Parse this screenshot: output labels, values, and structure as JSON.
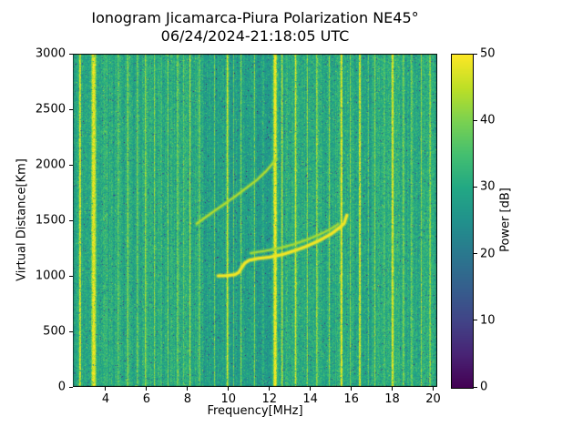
{
  "figure": {
    "title_line1": "Ionogram Jicamarca-Piura Polarization NE45°",
    "title_line2": "06/24/2024-21:18:05 UTC",
    "xlabel": "Frequency[MHz]",
    "ylabel": "Virtual Distance[Km]",
    "colorbar_label": "Power [dB]"
  },
  "chart_data": {
    "type": "heatmap",
    "title": "Ionogram Jicamarca-Piura Polarization NE45°",
    "subtitle": "06/24/2024-21:18:05 UTC",
    "xlabel": "Frequency[MHz]",
    "ylabel": "Virtual Distance[Km]",
    "x_range": [
      2.4,
      20.2
    ],
    "y_range": [
      0,
      3000
    ],
    "x_ticks": [
      4,
      6,
      8,
      10,
      12,
      14,
      16,
      18,
      20
    ],
    "y_ticks": [
      0,
      500,
      1000,
      1500,
      2000,
      2500,
      3000
    ],
    "grid": false,
    "legend": "none",
    "colorbar": {
      "label": "Power [dB]",
      "min": 0,
      "max": 50,
      "ticks": [
        0,
        10,
        20,
        30,
        40,
        50
      ],
      "colormap": "viridis",
      "colormap_stops": [
        [
          0,
          "#440154"
        ],
        [
          0.1,
          "#482475"
        ],
        [
          0.2,
          "#414487"
        ],
        [
          0.3,
          "#355f8d"
        ],
        [
          0.4,
          "#2a788e"
        ],
        [
          0.5,
          "#21918c"
        ],
        [
          0.6,
          "#22a884"
        ],
        [
          0.7,
          "#44bf70"
        ],
        [
          0.8,
          "#7ad151"
        ],
        [
          0.9,
          "#bddf26"
        ],
        [
          1,
          "#fde725"
        ]
      ]
    },
    "seed": 1337,
    "noise": {
      "mean": 30.5,
      "col_spread": 5,
      "pixel_spread": 9
    },
    "dark_zones": [
      {
        "f0": 8.75,
        "f1": 9.85,
        "delta": -2.5
      },
      {
        "f0": 10.05,
        "f1": 12.1,
        "delta": -2
      },
      {
        "f0": 16.55,
        "f1": 16.95,
        "delta": -2
      }
    ],
    "rfi_stripes": [
      {
        "f": 2.75,
        "w": 0.1,
        "db": 48
      },
      {
        "f": 3.42,
        "w": 0.22,
        "db": 49
      },
      {
        "f": 4.05,
        "w": 0.06,
        "db": 38
      },
      {
        "f": 4.62,
        "w": 0.07,
        "db": 40
      },
      {
        "f": 5.08,
        "w": 0.08,
        "db": 42
      },
      {
        "f": 5.55,
        "w": 0.07,
        "db": 41
      },
      {
        "f": 5.95,
        "w": 0.08,
        "db": 43
      },
      {
        "f": 6.38,
        "w": 0.07,
        "db": 41
      },
      {
        "f": 6.72,
        "w": 0.06,
        "db": 38
      },
      {
        "f": 7.05,
        "w": 0.07,
        "db": 40
      },
      {
        "f": 7.52,
        "w": 0.07,
        "db": 42
      },
      {
        "f": 7.8,
        "w": 0.05,
        "db": 38
      },
      {
        "f": 8.12,
        "w": 0.08,
        "db": 44
      },
      {
        "f": 8.58,
        "w": 0.07,
        "db": 41
      },
      {
        "f": 9.32,
        "w": 0.06,
        "db": 39
      },
      {
        "f": 9.95,
        "w": 0.09,
        "db": 47
      },
      {
        "f": 10.25,
        "w": 0.05,
        "db": 38
      },
      {
        "f": 10.62,
        "w": 0.07,
        "db": 41
      },
      {
        "f": 11.28,
        "w": 0.06,
        "db": 40
      },
      {
        "f": 11.7,
        "w": 0.05,
        "db": 38
      },
      {
        "f": 12.28,
        "w": 0.17,
        "db": 50
      },
      {
        "f": 12.62,
        "w": 0.08,
        "db": 45
      },
      {
        "f": 13.28,
        "w": 0.09,
        "db": 47
      },
      {
        "f": 13.85,
        "w": 0.07,
        "db": 42
      },
      {
        "f": 14.32,
        "w": 0.08,
        "db": 43
      },
      {
        "f": 14.92,
        "w": 0.07,
        "db": 42
      },
      {
        "f": 15.52,
        "w": 0.11,
        "db": 49
      },
      {
        "f": 15.95,
        "w": 0.06,
        "db": 40
      },
      {
        "f": 16.42,
        "w": 0.1,
        "db": 48
      },
      {
        "f": 16.85,
        "w": 0.05,
        "db": 38
      },
      {
        "f": 17.15,
        "w": 0.07,
        "db": 41
      },
      {
        "f": 17.62,
        "w": 0.06,
        "db": 40
      },
      {
        "f": 18.02,
        "w": 0.12,
        "db": 48
      },
      {
        "f": 18.55,
        "w": 0.07,
        "db": 42
      },
      {
        "f": 18.95,
        "w": 0.07,
        "db": 41
      },
      {
        "f": 19.42,
        "w": 0.07,
        "db": 42
      },
      {
        "f": 19.85,
        "w": 0.08,
        "db": 43
      }
    ],
    "echo_traces": [
      {
        "name": "f-layer-main-trace",
        "db": 49,
        "width": 3,
        "points": [
          [
            9.5,
            1000
          ],
          [
            9.9,
            1002
          ],
          [
            10.3,
            1010
          ],
          [
            10.5,
            1030
          ],
          [
            10.65,
            1075
          ],
          [
            10.8,
            1115
          ],
          [
            11.0,
            1140
          ],
          [
            11.4,
            1155
          ],
          [
            12.0,
            1168
          ],
          [
            12.6,
            1190
          ],
          [
            13.2,
            1225
          ],
          [
            13.8,
            1265
          ],
          [
            14.4,
            1315
          ],
          [
            15.0,
            1375
          ],
          [
            15.4,
            1430
          ],
          [
            15.65,
            1470
          ],
          [
            15.78,
            1545
          ]
        ]
      },
      {
        "name": "upper-oblique-trace",
        "db": 44,
        "width": 2,
        "points": [
          [
            8.45,
            1470
          ],
          [
            8.9,
            1530
          ],
          [
            9.4,
            1595
          ],
          [
            9.9,
            1660
          ],
          [
            10.4,
            1725
          ],
          [
            10.9,
            1795
          ],
          [
            11.4,
            1865
          ],
          [
            11.85,
            1945
          ],
          [
            12.2,
            2020
          ],
          [
            12.35,
            2055
          ]
        ]
      },
      {
        "name": "secondary-branch-trace",
        "db": 43,
        "width": 2,
        "points": [
          [
            11.1,
            1205
          ],
          [
            11.8,
            1225
          ],
          [
            12.5,
            1250
          ],
          [
            13.2,
            1285
          ],
          [
            13.9,
            1330
          ],
          [
            14.6,
            1385
          ],
          [
            15.1,
            1435
          ],
          [
            15.35,
            1465
          ]
        ]
      }
    ]
  }
}
